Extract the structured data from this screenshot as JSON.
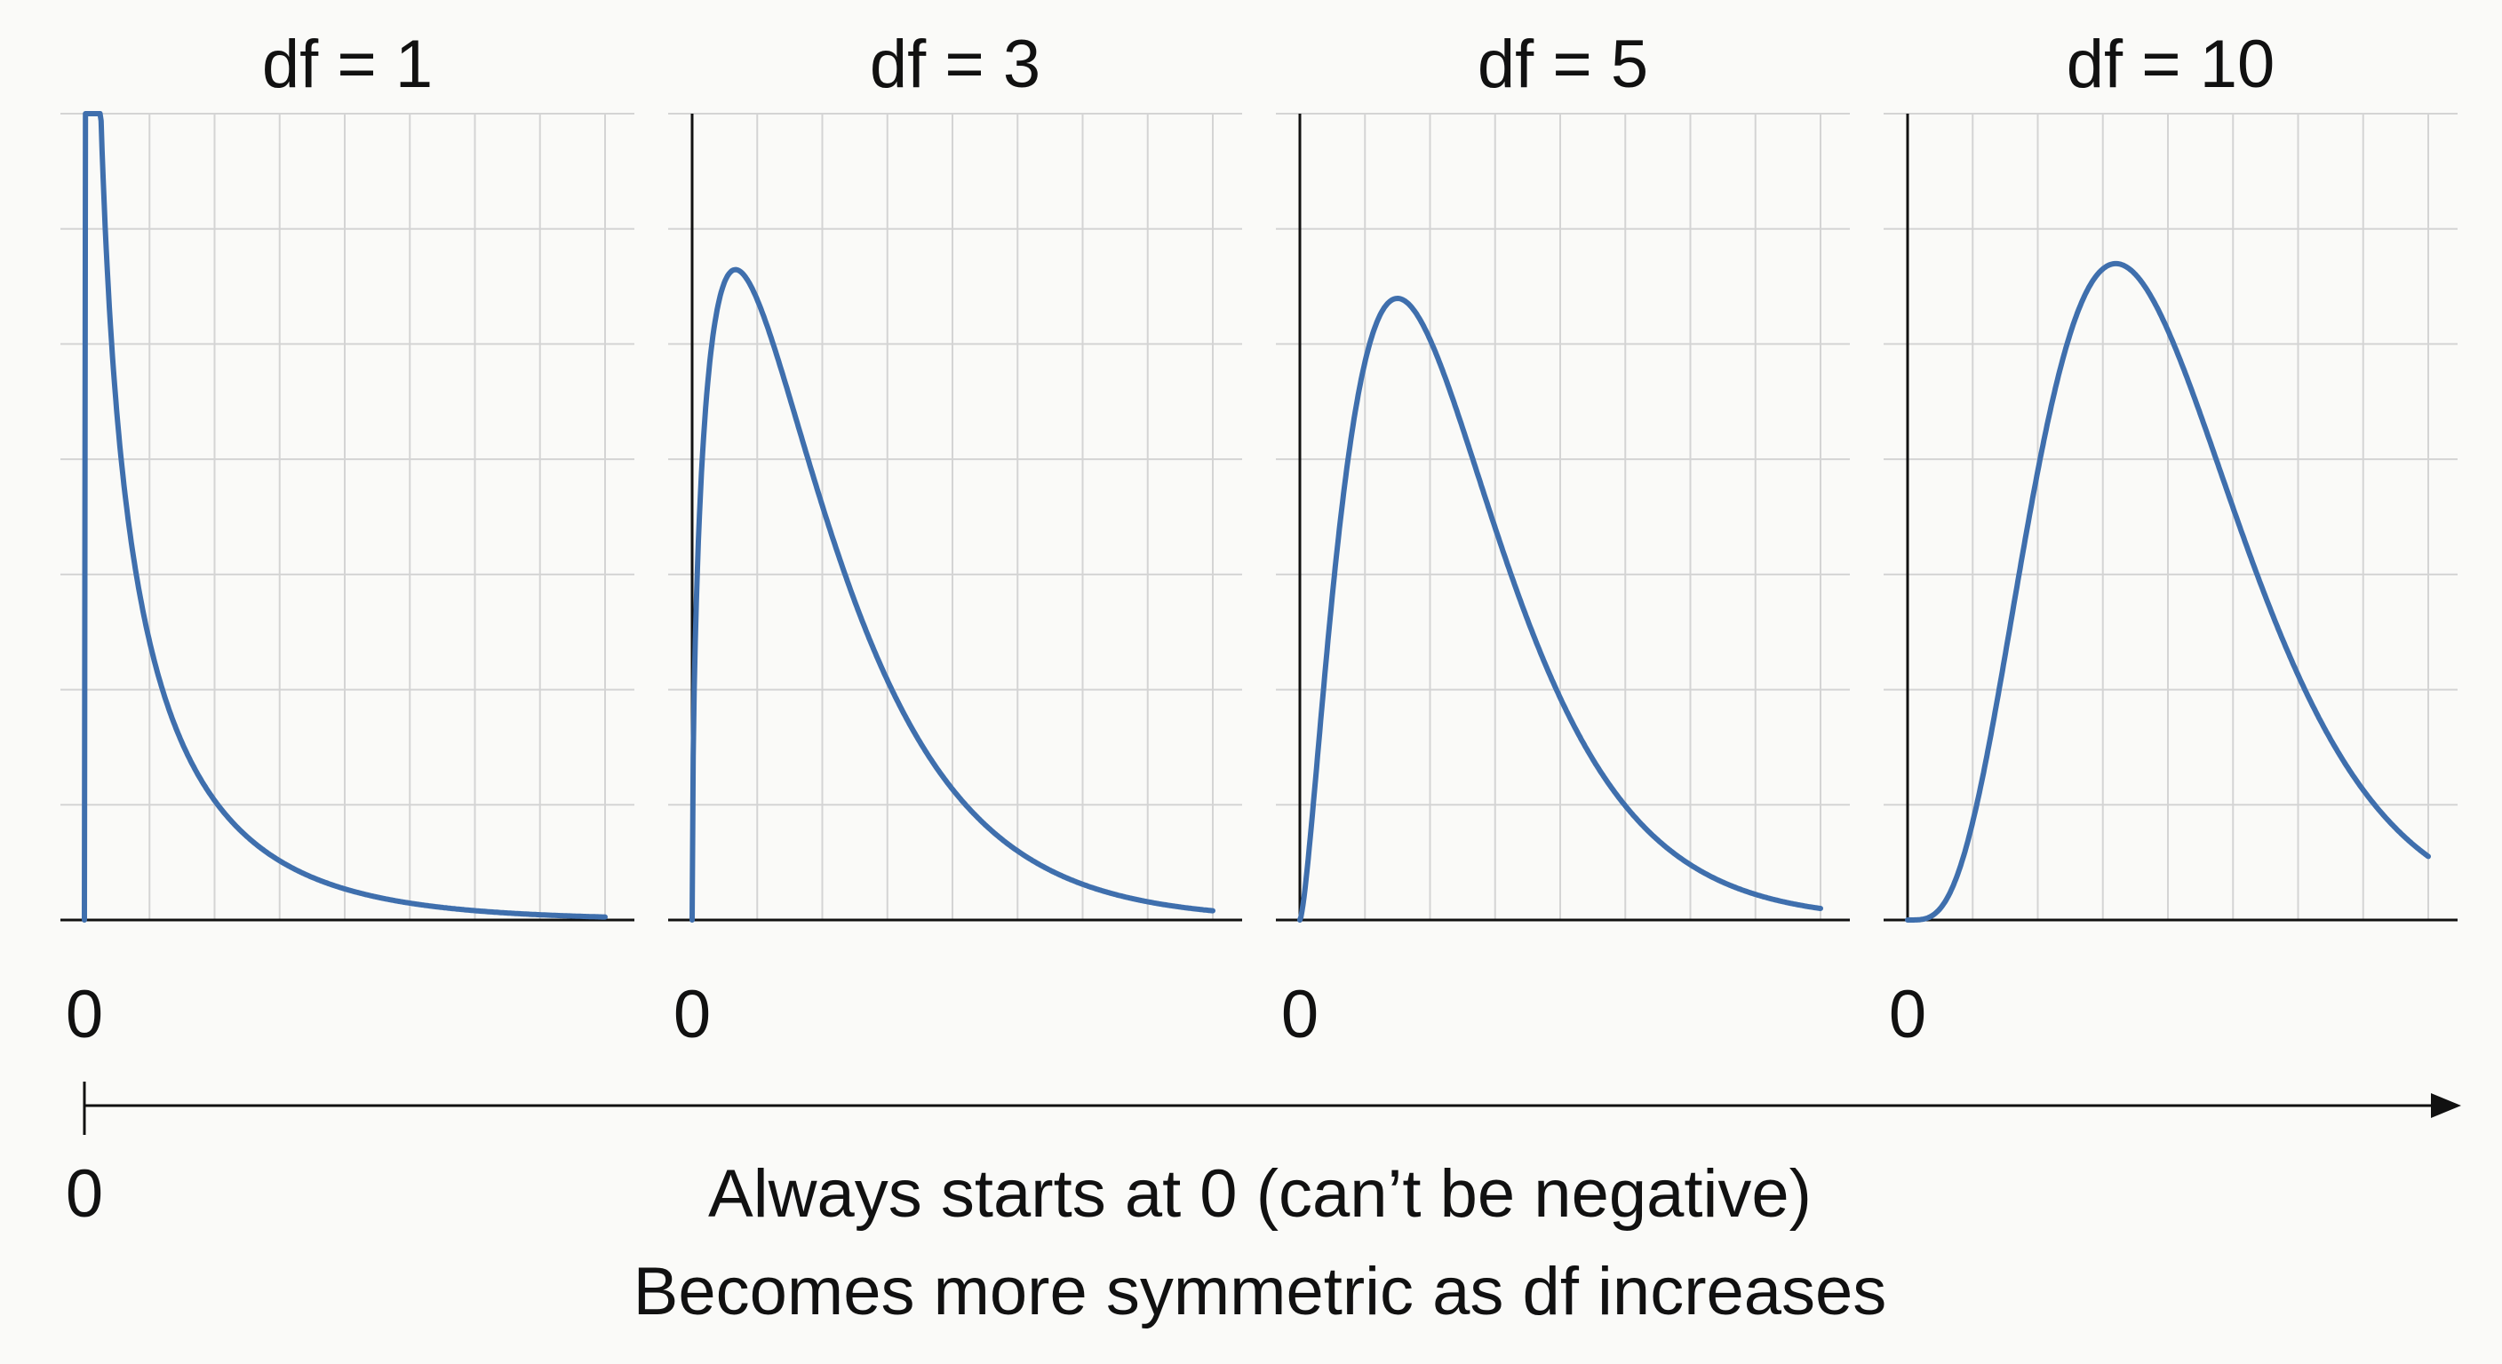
{
  "chart_data": [
    {
      "type": "line",
      "title": "df = 1",
      "df": 1,
      "x_tick_labels": [
        "0"
      ],
      "xlim": [
        0,
        8
      ],
      "ylim": [
        0,
        0.7
      ],
      "grid": true,
      "line_color": "#3f6fad"
    },
    {
      "type": "line",
      "title": "df = 3",
      "df": 3,
      "x_tick_labels": [
        "0"
      ],
      "xlim": [
        0,
        12
      ],
      "ylim": [
        0,
        0.3
      ],
      "grid": true,
      "line_color": "#3f6fad"
    },
    {
      "type": "line",
      "title": "df = 5",
      "df": 5,
      "x_tick_labels": [
        "0"
      ],
      "xlim": [
        0,
        16
      ],
      "ylim": [
        0,
        0.2
      ],
      "grid": true,
      "line_color": "#3f6fad"
    },
    {
      "type": "line",
      "title": "df = 10",
      "df": 10,
      "x_tick_labels": [
        "0"
      ],
      "xlim": [
        0,
        20
      ],
      "ylim": [
        0,
        0.12
      ],
      "grid": true,
      "line_color": "#3f6fad"
    }
  ],
  "bottom_axis": {
    "zero_label": "0"
  },
  "caption": {
    "line1": "Always starts at 0 (can’t be negative)",
    "line2": "Becomes more symmetric as df increases"
  }
}
